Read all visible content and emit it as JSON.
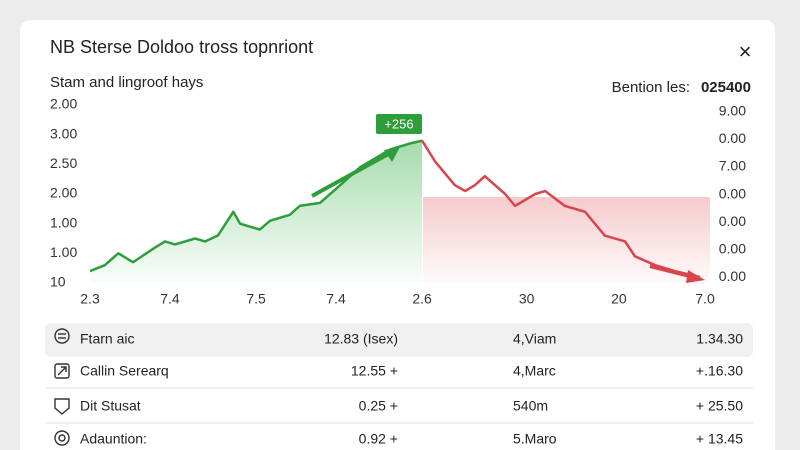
{
  "dialog": {
    "title": "NB Sterse Doldoo tross topnriont",
    "close": "×",
    "subtitle": "Stam and lingroof hays",
    "summary_label": "Bention les:",
    "summary_value": "025400"
  },
  "chart_data": {
    "type": "line",
    "annotation": "+256",
    "xlim": [
      0,
      100
    ],
    "xticks": [
      {
        "value": 0,
        "label": "2.3"
      },
      {
        "value": 13,
        "label": "7.4"
      },
      {
        "value": 27,
        "label": "7.5"
      },
      {
        "value": 40,
        "label": "7.4"
      },
      {
        "value": 54,
        "label": "2.6"
      },
      {
        "value": 71,
        "label": "30"
      },
      {
        "value": 86,
        "label": "20"
      },
      {
        "value": 100,
        "label": "7.0"
      }
    ],
    "ylim": [
      0,
      6
    ],
    "yticks": [
      {
        "value": 6,
        "label": "2.00"
      },
      {
        "value": 5,
        "label": "3.00"
      },
      {
        "value": 4,
        "label": "2.50"
      },
      {
        "value": 3,
        "label": "2.00"
      },
      {
        "value": 2,
        "label": "1.00"
      },
      {
        "value": 1,
        "label": "1.00"
      },
      {
        "value": 0,
        "label": "10"
      }
    ],
    "y2lim": [
      -0.2,
      6.24
    ],
    "y2ticks": [
      {
        "value": 6,
        "label": "9.00"
      },
      {
        "value": 5,
        "label": "0.00"
      },
      {
        "value": 4,
        "label": "7.00"
      },
      {
        "value": 3,
        "label": "0.00"
      },
      {
        "value": 2,
        "label": "0.00"
      },
      {
        "value": 1,
        "label": "0.00"
      },
      {
        "value": 0,
        "label": "0.00"
      }
    ],
    "series": [
      {
        "color": "#2e9e3a",
        "x": [
          0,
          2.4,
          4.6,
          7.0,
          10.6,
          12.2,
          13.8,
          17.1,
          18.7,
          20.8,
          23.3,
          24.4,
          27.6,
          29.3,
          32.5,
          34.1,
          37.4,
          40.7,
          43.9,
          48.8,
          52.0,
          54.0
        ],
        "values": [
          0.4,
          0.6,
          1.0,
          0.7,
          1.2,
          1.4,
          1.3,
          1.5,
          1.4,
          1.6,
          2.4,
          2.0,
          1.8,
          2.1,
          2.3,
          2.6,
          2.7,
          3.3,
          3.9,
          4.5,
          4.7,
          4.8
        ]
      },
      {
        "color": "#d9454a",
        "x": [
          54.0,
          56.1,
          57.7,
          59.3,
          61.0,
          62.6,
          64.2,
          67.5,
          69.1,
          72.4,
          74.0,
          77.2,
          80.5,
          83.7,
          87.0,
          88.6,
          91.9,
          95.1,
          99.2
        ],
        "values": [
          4.8,
          4.1,
          3.7,
          3.3,
          3.1,
          3.3,
          3.6,
          3.0,
          2.6,
          3.0,
          3.1,
          2.6,
          2.4,
          1.6,
          1.4,
          0.9,
          0.6,
          0.4,
          0.2
        ]
      }
    ]
  },
  "table": {
    "rows": [
      [
        "Ftarn aic",
        "12.83 (Isex)",
        "4,Viam",
        "1.34.30"
      ],
      [
        "Callin Serearq",
        "12.55 +",
        "4,Marc",
        "+.16.30"
      ],
      [
        "Dit Stusat",
        "0.25 +",
        "540m",
        "+ 25.50"
      ],
      [
        "Adauntion:",
        "0.92 +",
        "5.Maro",
        "+ 13.45"
      ]
    ]
  }
}
